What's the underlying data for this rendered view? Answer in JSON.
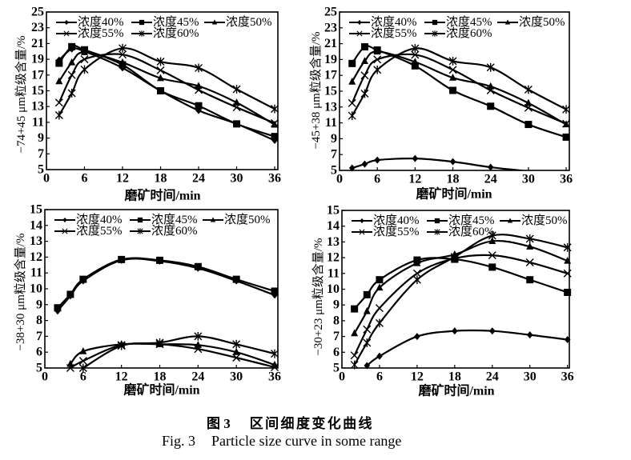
{
  "colors": {
    "ink": "#000000",
    "background": "#ffffff"
  },
  "figure": {
    "caption_cn_label": "图 3",
    "caption_cn_title": "区间细度变化曲线",
    "caption_en_label": "Fig. 3",
    "caption_en_title": "Particle size curve in some range"
  },
  "chart_data": [
    {
      "type": "line",
      "title": "",
      "xlabel": "磨矿时间/min",
      "ylabel": "−74+45 μm粒级含量/%",
      "x": [
        2,
        4,
        6,
        12,
        18,
        24,
        30,
        36
      ],
      "xticks": [
        0,
        6,
        12,
        18,
        24,
        30,
        36
      ],
      "yticks": [
        5,
        7,
        9,
        11,
        13,
        15,
        17,
        19,
        21,
        23,
        25
      ],
      "xlim": [
        0,
        36.5
      ],
      "ylim": [
        5,
        25
      ],
      "grid": false,
      "legend_position": "top",
      "series": [
        {
          "name": "浓度40%",
          "marker": "diamond",
          "values": [
            18.9,
            20.3,
            20.0,
            17.9,
            15.0,
            12.5,
            10.8,
            8.7
          ]
        },
        {
          "name": "浓度45%",
          "marker": "square",
          "values": [
            18.5,
            20.6,
            20.2,
            18.3,
            15.0,
            13.1,
            10.8,
            9.2
          ]
        },
        {
          "name": "浓度50%",
          "marker": "triangle",
          "values": [
            16.2,
            18.6,
            19.9,
            18.6,
            16.6,
            15.6,
            13.5,
            10.7
          ]
        },
        {
          "name": "浓度55%",
          "marker": "cross",
          "values": [
            13.5,
            17.0,
            19.0,
            19.6,
            17.6,
            15.1,
            12.9,
            10.9
          ]
        },
        {
          "name": "浓度60%",
          "marker": "star",
          "values": [
            11.9,
            14.7,
            17.7,
            20.4,
            18.7,
            17.9,
            15.2,
            12.7
          ]
        }
      ]
    },
    {
      "type": "line",
      "title": "",
      "xlabel": "磨矿时间/min",
      "ylabel": "−45+38 μm粒级含量/%",
      "x": [
        2,
        4,
        6,
        12,
        18,
        24,
        30,
        36
      ],
      "xticks": [
        0,
        6,
        12,
        18,
        24,
        30,
        36
      ],
      "yticks": [
        5,
        7,
        9,
        11,
        13,
        15,
        17,
        19,
        21,
        23,
        25
      ],
      "xlim": [
        0,
        36.5
      ],
      "ylim": [
        5,
        25
      ],
      "grid": false,
      "legend_position": "top",
      "series": [
        {
          "name": "浓度40%",
          "marker": "diamond",
          "values": [
            5.3,
            5.8,
            6.3,
            6.5,
            6.1,
            5.4,
            4.9,
            null
          ]
        },
        {
          "name": "浓度45%",
          "marker": "square",
          "values": [
            18.5,
            20.6,
            20.2,
            18.2,
            15.1,
            13.1,
            10.8,
            9.2
          ]
        },
        {
          "name": "浓度50%",
          "marker": "triangle",
          "values": [
            16.2,
            18.8,
            20.0,
            18.7,
            16.7,
            15.6,
            13.5,
            10.8
          ]
        },
        {
          "name": "浓度55%",
          "marker": "cross",
          "values": [
            13.5,
            17.0,
            19.0,
            19.6,
            17.7,
            15.1,
            12.9,
            10.9
          ]
        },
        {
          "name": "浓度60%",
          "marker": "star",
          "values": [
            11.9,
            14.7,
            17.7,
            20.4,
            18.8,
            18.0,
            15.2,
            12.7
          ]
        }
      ]
    },
    {
      "type": "line",
      "title": "",
      "xlabel": "磨矿时间/min",
      "ylabel": "−38+30 μm粒级含量/%",
      "x": [
        2,
        4,
        6,
        12,
        18,
        24,
        30,
        36
      ],
      "xticks": [
        0,
        6,
        12,
        18,
        24,
        30,
        36
      ],
      "yticks": [
        5,
        6,
        7,
        8,
        9,
        10,
        11,
        12,
        13,
        14,
        15
      ],
      "xlim": [
        0,
        36.5
      ],
      "ylim": [
        5,
        15
      ],
      "grid": false,
      "legend_position": "top",
      "series": [
        {
          "name": "浓度40%",
          "marker": "diamond",
          "values": [
            8.6,
            9.55,
            10.5,
            11.8,
            11.75,
            11.3,
            10.5,
            9.6
          ]
        },
        {
          "name": "浓度45%",
          "marker": "square",
          "values": [
            8.8,
            9.65,
            10.6,
            11.85,
            11.8,
            11.4,
            10.6,
            9.85
          ]
        },
        {
          "name": "浓度50%",
          "marker": "triangle",
          "values": [
            null,
            5.25,
            6.05,
            6.5,
            6.5,
            6.45,
            6.0,
            5.2
          ]
        },
        {
          "name": "浓度55%",
          "marker": "cross",
          "values": [
            null,
            5.0,
            5.45,
            6.45,
            6.5,
            6.2,
            5.65,
            5.05
          ]
        },
        {
          "name": "浓度60%",
          "marker": "star",
          "values": [
            null,
            null,
            5.0,
            6.4,
            6.6,
            7.0,
            6.5,
            5.9
          ]
        }
      ]
    },
    {
      "type": "line",
      "title": "",
      "xlabel": "磨矿时间/min",
      "ylabel": "−30+23 μm粒级含量/%",
      "x": [
        2,
        4,
        6,
        12,
        18,
        24,
        30,
        36
      ],
      "xticks": [
        0,
        6,
        12,
        18,
        24,
        30,
        36
      ],
      "yticks": [
        5,
        6,
        7,
        8,
        9,
        10,
        11,
        12,
        13,
        14,
        15
      ],
      "xlim": [
        0,
        36.3
      ],
      "ylim": [
        5,
        15
      ],
      "grid": false,
      "legend_position": "top",
      "series": [
        {
          "name": "浓度40%",
          "marker": "diamond",
          "values": [
            null,
            5.15,
            5.75,
            7.0,
            7.35,
            7.35,
            7.1,
            6.8
          ]
        },
        {
          "name": "浓度45%",
          "marker": "square",
          "values": [
            8.75,
            9.65,
            10.6,
            11.85,
            11.9,
            11.4,
            10.6,
            9.8
          ]
        },
        {
          "name": "浓度50%",
          "marker": "triangle",
          "values": [
            7.2,
            8.6,
            10.1,
            11.65,
            12.2,
            13.05,
            12.7,
            11.8
          ]
        },
        {
          "name": "浓度55%",
          "marker": "cross",
          "values": [
            5.8,
            7.45,
            8.8,
            11.0,
            11.95,
            12.15,
            11.7,
            11.0
          ]
        },
        {
          "name": "浓度60%",
          "marker": "star",
          "values": [
            5.2,
            6.6,
            7.85,
            10.6,
            12.05,
            13.4,
            13.2,
            12.65
          ]
        }
      ]
    }
  ]
}
